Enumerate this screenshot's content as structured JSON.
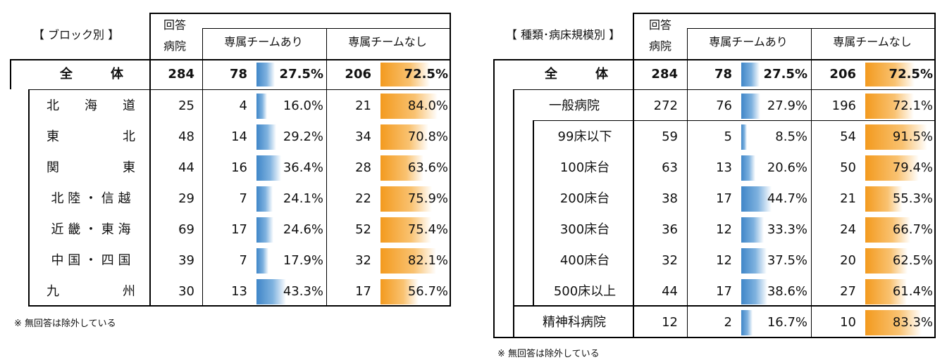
{
  "left_table": {
    "title": "【 ブロック別 】",
    "headers": {
      "respond": "回答",
      "hospital": "病院",
      "yes": "専属チームあり",
      "no": "専属チームなし"
    },
    "total": {
      "label": "全　　　体",
      "n": 284,
      "yes_n": 78,
      "yes_pct": 27.5,
      "no_n": 206,
      "no_pct": 72.5
    },
    "rows": [
      {
        "label": "北　　海　　道",
        "n": 25,
        "yes_n": 4,
        "yes_pct": 16.0,
        "no_n": 21,
        "no_pct": 84.0
      },
      {
        "label": "東　　　　　北",
        "n": 48,
        "yes_n": 14,
        "yes_pct": 29.2,
        "no_n": 34,
        "no_pct": 70.8
      },
      {
        "label": "関　　　　　東",
        "n": 44,
        "yes_n": 16,
        "yes_pct": 36.4,
        "no_n": 28,
        "no_pct": 63.6
      },
      {
        "label": "北 陸 ・ 信 越",
        "n": 29,
        "yes_n": 7,
        "yes_pct": 24.1,
        "no_n": 22,
        "no_pct": 75.9
      },
      {
        "label": "近 畿 ・ 東 海",
        "n": 69,
        "yes_n": 17,
        "yes_pct": 24.6,
        "no_n": 52,
        "no_pct": 75.4
      },
      {
        "label": "中 国 ・ 四 国",
        "n": 39,
        "yes_n": 7,
        "yes_pct": 17.9,
        "no_n": 32,
        "no_pct": 82.1
      },
      {
        "label": "九　　　　　州",
        "n": 30,
        "yes_n": 13,
        "yes_pct": 43.3,
        "no_n": 17,
        "no_pct": 56.7
      }
    ],
    "note": "※ 無回答は除外している"
  },
  "right_table": {
    "title": "【 種類･病床規模別 】",
    "headers": {
      "respond": "回答",
      "hospital": "病院",
      "yes": "専属チームあり",
      "no": "専属チームなし"
    },
    "total": {
      "label": "全　　　体",
      "n": 284,
      "yes_n": 78,
      "yes_pct": 27.5,
      "no_n": 206,
      "no_pct": 72.5
    },
    "rows": [
      {
        "label": "一般病院",
        "n": 272,
        "yes_n": 76,
        "yes_pct": 27.9,
        "no_n": 196,
        "no_pct": 72.1,
        "level": 1
      },
      {
        "label": "99床以下",
        "n": 59,
        "yes_n": 5,
        "yes_pct": 8.5,
        "no_n": 54,
        "no_pct": 91.5,
        "level": 2
      },
      {
        "label": "100床台",
        "n": 63,
        "yes_n": 13,
        "yes_pct": 20.6,
        "no_n": 50,
        "no_pct": 79.4,
        "level": 2
      },
      {
        "label": "200床台",
        "n": 38,
        "yes_n": 17,
        "yes_pct": 44.7,
        "no_n": 21,
        "no_pct": 55.3,
        "level": 2
      },
      {
        "label": "300床台",
        "n": 36,
        "yes_n": 12,
        "yes_pct": 33.3,
        "no_n": 24,
        "no_pct": 66.7,
        "level": 2
      },
      {
        "label": "400床台",
        "n": 32,
        "yes_n": 12,
        "yes_pct": 37.5,
        "no_n": 20,
        "no_pct": 62.5,
        "level": 2
      },
      {
        "label": "500床以上",
        "n": 44,
        "yes_n": 17,
        "yes_pct": 38.6,
        "no_n": 27,
        "no_pct": 61.4,
        "level": 2
      },
      {
        "label": "精神科病院",
        "n": 12,
        "yes_n": 2,
        "yes_pct": 16.7,
        "no_n": 10,
        "no_pct": 83.3,
        "level": 1
      }
    ],
    "note": "※ 無回答は除外している"
  },
  "colors": {
    "yes_bar": "#3f86c8",
    "no_bar": "#f39a1e",
    "border": "#000000"
  },
  "chart_data": [
    {
      "type": "table",
      "title": "【 ブロック別 】",
      "columns": [
        "回答病院",
        "専属チームあり",
        "専属チームあり(%)",
        "専属チームなし",
        "専属チームなし(%)"
      ],
      "categories": [
        "全体",
        "北海道",
        "東北",
        "関東",
        "北陸・信越",
        "近畿・東海",
        "中国・四国",
        "九州"
      ],
      "series": [
        {
          "name": "回答病院",
          "values": [
            284,
            25,
            48,
            44,
            29,
            69,
            39,
            30
          ]
        },
        {
          "name": "専属チームあり",
          "values": [
            78,
            4,
            14,
            16,
            7,
            17,
            7,
            13
          ]
        },
        {
          "name": "専属チームあり(%)",
          "values": [
            27.5,
            16.0,
            29.2,
            36.4,
            24.1,
            24.6,
            17.9,
            43.3
          ]
        },
        {
          "name": "専属チームなし",
          "values": [
            206,
            21,
            34,
            28,
            22,
            52,
            32,
            17
          ]
        },
        {
          "name": "専属チームなし(%)",
          "values": [
            72.5,
            84.0,
            70.8,
            63.6,
            75.9,
            75.4,
            82.1,
            56.7
          ]
        }
      ]
    },
    {
      "type": "table",
      "title": "【 種類･病床規模別 】",
      "columns": [
        "回答病院",
        "専属チームあり",
        "専属チームあり(%)",
        "専属チームなし",
        "専属チームなし(%)"
      ],
      "categories": [
        "全体",
        "一般病院",
        "99床以下",
        "100床台",
        "200床台",
        "300床台",
        "400床台",
        "500床以上",
        "精神科病院"
      ],
      "series": [
        {
          "name": "回答病院",
          "values": [
            284,
            272,
            59,
            63,
            38,
            36,
            32,
            44,
            12
          ]
        },
        {
          "name": "専属チームあり",
          "values": [
            78,
            76,
            5,
            13,
            17,
            12,
            12,
            17,
            2
          ]
        },
        {
          "name": "専属チームあり(%)",
          "values": [
            27.5,
            27.9,
            8.5,
            20.6,
            44.7,
            33.3,
            37.5,
            38.6,
            16.7
          ]
        },
        {
          "name": "専属チームなし",
          "values": [
            206,
            196,
            54,
            50,
            21,
            24,
            20,
            27,
            10
          ]
        },
        {
          "name": "専属チームなし(%)",
          "values": [
            72.5,
            72.1,
            91.5,
            79.4,
            55.3,
            66.7,
            62.5,
            61.4,
            83.3
          ]
        }
      ]
    }
  ]
}
